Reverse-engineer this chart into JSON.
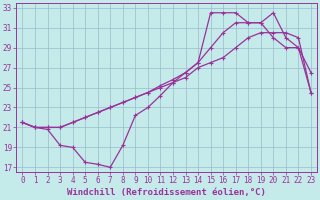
{
  "xlabel": "Windchill (Refroidissement éolien,°C)",
  "xlim": [
    -0.5,
    23.5
  ],
  "ylim": [
    16.5,
    33.5
  ],
  "xticks": [
    0,
    1,
    2,
    3,
    4,
    5,
    6,
    7,
    8,
    9,
    10,
    11,
    12,
    13,
    14,
    15,
    16,
    17,
    18,
    19,
    20,
    21,
    22,
    23
  ],
  "yticks": [
    17,
    19,
    21,
    23,
    25,
    27,
    29,
    31,
    33
  ],
  "bg_color": "#c5eaea",
  "line_color": "#993399",
  "grid_color": "#99bbcc",
  "line1_x": [
    0,
    1,
    2,
    3,
    4,
    5,
    6,
    7,
    8,
    9,
    10,
    11,
    12,
    13,
    14,
    15,
    16,
    17,
    18,
    19,
    20,
    21,
    22,
    23
  ],
  "line1_y": [
    21.5,
    21.0,
    20.8,
    19.2,
    19.0,
    17.5,
    17.3,
    17.0,
    19.2,
    22.2,
    23.0,
    24.2,
    25.5,
    26.5,
    27.5,
    32.5,
    32.5,
    32.5,
    31.5,
    31.5,
    30.0,
    29.0,
    29.0,
    26.5
  ],
  "line2_x": [
    0,
    1,
    2,
    3,
    4,
    5,
    6,
    7,
    8,
    9,
    10,
    11,
    12,
    13,
    14,
    15,
    16,
    17,
    18,
    19,
    20,
    21,
    22,
    23
  ],
  "line2_y": [
    21.5,
    21.0,
    21.0,
    21.0,
    21.5,
    22.0,
    22.5,
    23.0,
    23.5,
    24.0,
    24.5,
    25.0,
    25.5,
    26.0,
    27.0,
    27.5,
    28.0,
    29.0,
    30.0,
    30.5,
    30.5,
    30.5,
    30.0,
    24.5
  ],
  "line3_x": [
    0,
    1,
    2,
    3,
    4,
    5,
    6,
    7,
    8,
    9,
    10,
    11,
    12,
    13,
    14,
    15,
    16,
    17,
    18,
    19,
    20,
    21,
    22,
    23
  ],
  "line3_y": [
    21.5,
    21.0,
    21.0,
    21.0,
    21.5,
    22.0,
    22.5,
    23.0,
    23.5,
    24.0,
    24.5,
    25.2,
    25.8,
    26.5,
    27.5,
    29.0,
    30.5,
    31.5,
    31.5,
    31.5,
    32.5,
    30.0,
    29.0,
    24.5
  ],
  "tick_fontsize": 5.5,
  "xlabel_fontsize": 6.5
}
